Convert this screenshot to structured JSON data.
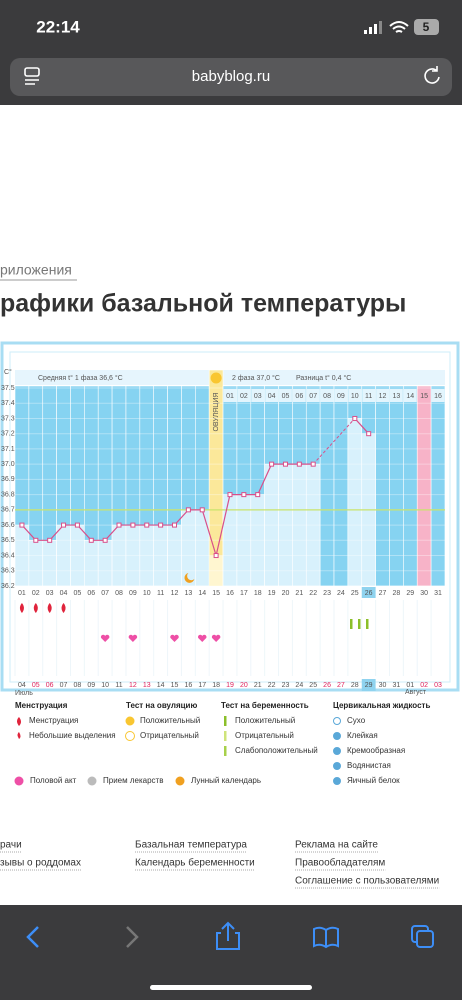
{
  "browser": {
    "time": "22:14",
    "battery": "5",
    "url": "babyblog.ru"
  },
  "page": {
    "breadcrumb": "риложения",
    "title": "рафики базальной температуры"
  },
  "chart_data": {
    "type": "line",
    "y_label": "C°",
    "annotations": {
      "phase1": "Средняя t° 1 фаза 36,6 °C",
      "ovulation": "ОВУЛЯЦИЯ",
      "phase2": "2 фаза 37,0 °C",
      "difference": "Разница t° 0,4 °C"
    },
    "categories": [
      "01",
      "02",
      "03",
      "04",
      "05",
      "06",
      "07",
      "08",
      "09",
      "10",
      "11",
      "12",
      "13",
      "14",
      "15",
      "16",
      "17",
      "18",
      "19",
      "20",
      "21",
      "22",
      "23",
      "24",
      "25",
      "26",
      "27",
      "28",
      "29",
      "30",
      "31"
    ],
    "phase2_days": [
      "01",
      "02",
      "03",
      "04",
      "05",
      "06",
      "07",
      "08",
      "09",
      "10",
      "11",
      "12",
      "13",
      "14",
      "15",
      "16"
    ],
    "dates": [
      "04",
      "05",
      "06",
      "07",
      "08",
      "09",
      "10",
      "11",
      "12",
      "13",
      "14",
      "15",
      "16",
      "17",
      "18",
      "19",
      "20",
      "21",
      "22",
      "23",
      "24",
      "25",
      "26",
      "27",
      "28",
      "29",
      "30",
      "31",
      "01",
      "02",
      "03"
    ],
    "months": [
      "Июль",
      "Август"
    ],
    "values": [
      36.6,
      36.5,
      36.5,
      36.6,
      36.6,
      36.5,
      36.5,
      36.6,
      36.6,
      36.6,
      36.6,
      36.6,
      36.7,
      36.7,
      36.4,
      36.8,
      36.8,
      36.8,
      37.0,
      37.0,
      37.0,
      37.0,
      null,
      null,
      37.3,
      37.2,
      null,
      null,
      null,
      null,
      null
    ],
    "color": "#d94f8a",
    "cover_line": 36.7,
    "ylim": [
      36.2,
      37.5
    ],
    "yticks": [
      36.2,
      36.3,
      36.4,
      36.5,
      36.6,
      36.7,
      36.8,
      36.9,
      {
        "value": 37.0,
        "label": "37.0"
      },
      37.1,
      37.2,
      37.3,
      37.4,
      37.5
    ]
  },
  "legend": {
    "groups": [
      {
        "title": "Менструация",
        "items": [
          "Менструация",
          "Небольшие выделения"
        ]
      },
      {
        "title": "Тест на овуляцию",
        "items": [
          "Положительный",
          "Отрицательный"
        ]
      },
      {
        "title": "Тест на беременность",
        "items": [
          "Положительный",
          "Отрицательный",
          "Слабоположительный"
        ]
      },
      {
        "title": "Цервикальная жидкость",
        "items": [
          "Сухо",
          "Клейкая",
          "Кремообразная",
          "Водянистая",
          "Яичный белок"
        ]
      }
    ],
    "extra": [
      "Половой акт",
      "Прием лекарств",
      "Лунный календарь"
    ]
  },
  "footer": {
    "columns": [
      [
        "рачи",
        "зывы о роддомах"
      ],
      [
        "Базальная температура",
        "Календарь беременности"
      ],
      [
        "Реклама на сайте",
        "Правообладателям",
        "Соглашение с пользователями"
      ]
    ]
  }
}
